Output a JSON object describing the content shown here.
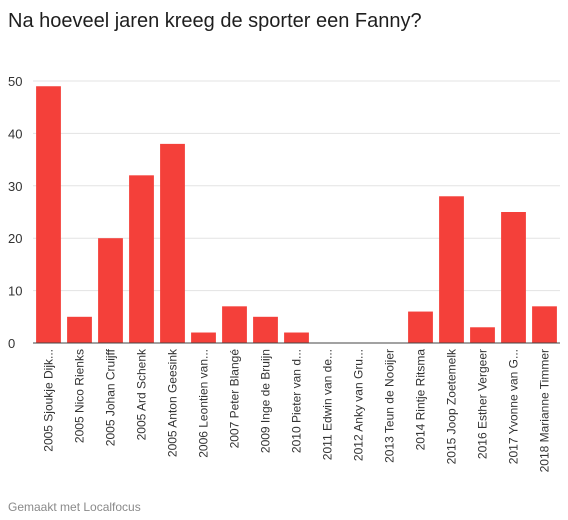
{
  "title": "Na hoeveel jaren kreeg de sporter een Fanny?",
  "footer": "Gemaakt met Localfocus",
  "colors": {
    "bar": "#f4403a",
    "grid": "#e3e3e3",
    "axis": "#444444"
  },
  "chart_data": {
    "type": "bar",
    "title": "Na hoeveel jaren kreeg de sporter een Fanny?",
    "xlabel": "",
    "ylabel": "",
    "ylim": [
      0,
      50
    ],
    "yticks": [
      0,
      10,
      20,
      30,
      40,
      50
    ],
    "grid": true,
    "categories": [
      "2005 Sjoukje Dijk...",
      "2005 Nico Rienks",
      "2005 Johan Cruijff",
      "2005 Ard Schenk",
      "2005 Anton Geesink",
      "2006 Leontien van...",
      "2007 Peter Blangé",
      "2009 Inge de Bruijn",
      "2010 Pieter van d...",
      "2011 Edwin van de...",
      "2012 Anky van Gru...",
      "2013 Teun de Nooijer",
      "2014 Rintje Ritsma",
      "2015 Joop Zoetemelk",
      "2016 Esther Vergeer",
      "2017 Yvonne van G...",
      "2018 Marianne Timmer"
    ],
    "values": [
      49,
      5,
      20,
      32,
      38,
      2,
      7,
      5,
      2,
      0,
      0,
      0,
      6,
      28,
      3,
      25,
      7
    ]
  }
}
